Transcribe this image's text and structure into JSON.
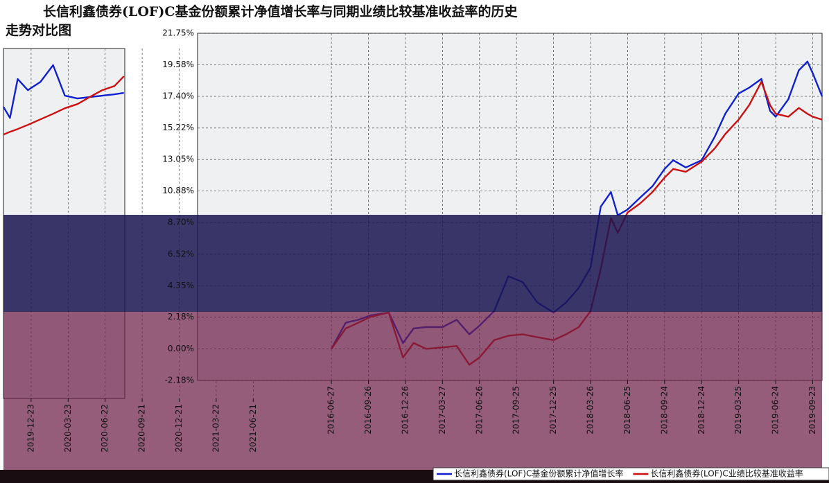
{
  "chart_data": [
    {
      "type": "line",
      "x": [
        "2019-10-16",
        "2019-11-01",
        "2019-11-20",
        "2019-12-15",
        "2020-01-15",
        "2020-02-15",
        "2020-03-15",
        "2020-04-15",
        "2020-05-15",
        "2020-06-15",
        "2020-07-15",
        "2020-08-07"
      ],
      "series": [
        {
          "color": "#1020d0",
          "values": [
            17.8,
            17.0,
            19.8,
            19.0,
            19.6,
            20.8,
            18.6,
            18.4,
            18.5,
            18.6,
            18.7,
            18.8
          ]
        },
        {
          "color": "#cc1010",
          "values": [
            15.8,
            16.0,
            16.2,
            16.5,
            16.9,
            17.3,
            17.7,
            18.0,
            18.5,
            19.0,
            19.3,
            20.0
          ]
        }
      ],
      "xlim": [
        "2019-10-16",
        "2021-06-29"
      ],
      "xticks": [
        "2019-12-23",
        "2020-03-23",
        "2020-06-22",
        "2020-09-21",
        "2020-12-21",
        "2021-03-22",
        "2021-06-21"
      ],
      "ylim": [
        -3.2,
        22
      ]
    },
    {
      "type": "line",
      "title": [
        "长信利鑫债券(LOF)C基金份额累计净值增长率与同期业绩比较基准收益率的历史",
        "走势对比图"
      ],
      "x": [
        "2016-06-27",
        "2016-08-01",
        "2016-09-01",
        "2016-10-01",
        "2016-11-15",
        "2016-12-20",
        "2017-01-15",
        "2017-02-15",
        "2017-03-27",
        "2017-05-01",
        "2017-06-01",
        "2017-06-26",
        "2017-08-01",
        "2017-09-05",
        "2017-10-10",
        "2017-11-15",
        "2017-12-25",
        "2018-01-25",
        "2018-02-25",
        "2018-03-26",
        "2018-04-20",
        "2018-05-15",
        "2018-06-01",
        "2018-06-25",
        "2018-07-25",
        "2018-08-25",
        "2018-09-24",
        "2018-10-15",
        "2018-11-15",
        "2018-12-24",
        "2019-01-25",
        "2019-02-20",
        "2019-03-25",
        "2019-04-20",
        "2019-05-20",
        "2019-06-10",
        "2019-06-24",
        "2019-07-25",
        "2019-08-20",
        "2019-09-10",
        "2019-09-23",
        "2019-10-16"
      ],
      "series": [
        {
          "name": "长信利鑫债券(LOF)C基金份额累计净值增长率",
          "color": "#1020d0",
          "values": [
            0,
            1.8,
            2.0,
            2.3,
            2.5,
            0.4,
            1.4,
            1.5,
            1.5,
            2.0,
            1.0,
            1.6,
            2.6,
            5.0,
            4.6,
            3.2,
            2.5,
            3.2,
            4.2,
            5.6,
            9.8,
            10.8,
            9.2,
            9.6,
            10.4,
            11.2,
            12.4,
            13.0,
            12.5,
            13.0,
            14.6,
            16.2,
            17.6,
            18.0,
            18.6,
            16.4,
            16.0,
            17.2,
            19.2,
            19.8,
            19.0,
            17.4
          ]
        },
        {
          "name": "长信利鑫债券(LOF)C业绩比较基准收益率",
          "color": "#cc1010",
          "values": [
            0,
            1.4,
            1.8,
            2.2,
            2.5,
            -0.6,
            0.4,
            0.0,
            0.1,
            0.2,
            -1.1,
            -0.6,
            0.6,
            0.9,
            1.0,
            0.8,
            0.6,
            1.0,
            1.5,
            2.6,
            5.5,
            9.0,
            8.0,
            9.4,
            10.0,
            10.8,
            11.8,
            12.4,
            12.2,
            12.9,
            13.8,
            14.8,
            15.8,
            16.8,
            18.4,
            16.8,
            16.2,
            16.0,
            16.6,
            16.2,
            16.0,
            15.8
          ]
        }
      ],
      "xlim": [
        "2015-08-03",
        "2019-10-16"
      ],
      "xticks": [
        "2016-06-27",
        "2016-09-26",
        "2016-12-26",
        "2017-03-27",
        "2017-06-26",
        "2017-09-25",
        "2017-12-25",
        "2018-03-26",
        "2018-06-25",
        "2018-09-24",
        "2018-12-24",
        "2019-03-25",
        "2019-06-24",
        "2019-09-23"
      ],
      "ylim": [
        -2.18,
        21.75
      ],
      "yticks": [
        {
          "value": -2.18,
          "label": "-2.18%"
        },
        {
          "value": 0,
          "label": "0.00%"
        },
        {
          "value": 2.18,
          "label": "2.18%"
        },
        {
          "value": 4.35,
          "label": "4.35%"
        },
        {
          "value": 6.52,
          "label": "6.52%"
        },
        {
          "value": 8.7,
          "label": "8.70%"
        },
        {
          "value": 10.88,
          "label": "10.88%"
        },
        {
          "value": 13.05,
          "label": "13.05%"
        },
        {
          "value": 15.22,
          "label": "15.22%"
        },
        {
          "value": 17.4,
          "label": "17.40%"
        },
        {
          "value": 19.58,
          "label": "19.58%"
        },
        {
          "value": 21.75,
          "label": "21.75%"
        }
      ],
      "grid": true,
      "legend": "bottom"
    }
  ]
}
